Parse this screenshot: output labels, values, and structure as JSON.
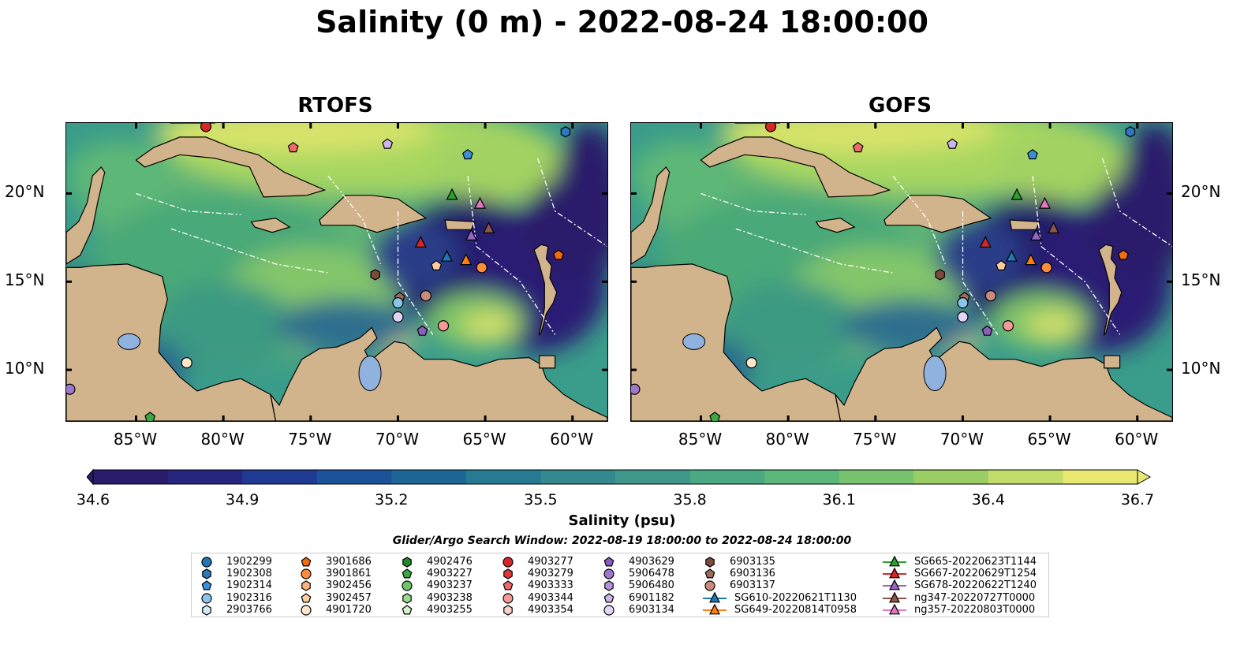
{
  "title": "Salinity (0 m) - 2022-08-24 18:00:00",
  "panels": [
    {
      "title": "RTOFS"
    },
    {
      "title": "GOFS"
    }
  ],
  "lon_ticks": [
    "85°W",
    "80°W",
    "75°W",
    "70°W",
    "65°W",
    "60°W"
  ],
  "lat_ticks": [
    "20°N",
    "15°N",
    "10°N"
  ],
  "colorbar": {
    "label": "Salinity (psu)",
    "ticks": [
      "34.6",
      "34.9",
      "35.2",
      "35.5",
      "35.8",
      "36.1",
      "36.4",
      "36.7"
    ],
    "min": 34.6,
    "max": 36.7,
    "colormap": "haline"
  },
  "search_window": "Glider/Argo Search Window: 2022-08-19 18:00:00 to 2022-08-24 18:00:00",
  "colors": {
    "land": "#d2b48c",
    "fresh": "#2a1b6b",
    "mid": "#3a9c8a",
    "salty": "#e9e873"
  },
  "legend": [
    {
      "label": "1902299",
      "marker": "circle",
      "color": "#1f77b4"
    },
    {
      "label": "1902308",
      "marker": "hexagon",
      "color": "#2f78c0"
    },
    {
      "label": "1902314",
      "marker": "pentagon",
      "color": "#3a8fd6"
    },
    {
      "label": "1902316",
      "marker": "circle",
      "color": "#8cc5ec"
    },
    {
      "label": "2903766",
      "marker": "hexagon",
      "color": "#d6ebfa"
    },
    {
      "label": "3901686",
      "marker": "pentagon",
      "color": "#f26b0e"
    },
    {
      "label": "3901861",
      "marker": "circle",
      "color": "#fd8d3c"
    },
    {
      "label": "3902456",
      "marker": "hexagon",
      "color": "#fdb57f"
    },
    {
      "label": "3902457",
      "marker": "pentagon",
      "color": "#fdcc9f"
    },
    {
      "label": "4901720",
      "marker": "circle",
      "color": "#fde8c9"
    },
    {
      "label": "4902476",
      "marker": "hexagon",
      "color": "#1e8c2a"
    },
    {
      "label": "4903227",
      "marker": "pentagon",
      "color": "#3aa845"
    },
    {
      "label": "4903237",
      "marker": "circle",
      "color": "#6cc36a"
    },
    {
      "label": "4903238",
      "marker": "hexagon",
      "color": "#98d98c"
    },
    {
      "label": "4903255",
      "marker": "pentagon",
      "color": "#d6f2cf"
    },
    {
      "label": "4903277",
      "marker": "circle",
      "color": "#d62728"
    },
    {
      "label": "4903279",
      "marker": "hexagon",
      "color": "#e0393b"
    },
    {
      "label": "4903333",
      "marker": "pentagon",
      "color": "#ec6a6b"
    },
    {
      "label": "4903344",
      "marker": "circle",
      "color": "#f59a99"
    },
    {
      "label": "4903354",
      "marker": "hexagon",
      "color": "#fbd1d0"
    },
    {
      "label": "4903629",
      "marker": "pentagon",
      "color": "#8d5cc0"
    },
    {
      "label": "5906478",
      "marker": "circle",
      "color": "#9f78cc"
    },
    {
      "label": "5906480",
      "marker": "hexagon",
      "color": "#b596dc"
    },
    {
      "label": "6901182",
      "marker": "pentagon",
      "color": "#cdb6ec"
    },
    {
      "label": "6903134",
      "marker": "circle",
      "color": "#e4d4f6"
    },
    {
      "label": "6903135",
      "marker": "hexagon",
      "color": "#7d4b3c"
    },
    {
      "label": "6903136",
      "marker": "pentagon",
      "color": "#9d6b5a"
    },
    {
      "label": "6903137",
      "marker": "circle",
      "color": "#c98c7c"
    },
    {
      "label": "SG610-20220621T1130",
      "marker": "triangle",
      "color": "#1f77b4"
    },
    {
      "label": "SG649-20220814T0958",
      "marker": "triangle",
      "color": "#ff7f0e"
    },
    {
      "label": "SG665-20220623T1144",
      "marker": "triangle",
      "color": "#2ca02c"
    },
    {
      "label": "SG667-20220629T1254",
      "marker": "triangle",
      "color": "#d62728"
    },
    {
      "label": "SG678-20220622T1240",
      "marker": "triangle",
      "color": "#9467bd"
    },
    {
      "label": "ng347-20220727T0000",
      "marker": "triangle",
      "color": "#8c564b"
    },
    {
      "label": "ng357-20220803T0000",
      "marker": "triangle",
      "color": "#e377c2"
    }
  ],
  "observations": [
    {
      "id": "4903277",
      "lon": -81.0,
      "lat": 23.8
    },
    {
      "id": "4903333",
      "lon": -76.0,
      "lat": 22.6
    },
    {
      "id": "6901182",
      "lon": -70.6,
      "lat": 22.8
    },
    {
      "id": "1902314",
      "lon": -66.0,
      "lat": 22.2
    },
    {
      "id": "1902308",
      "lon": -60.4,
      "lat": 23.5
    },
    {
      "id": "SG665-20220623T1144",
      "lon": -66.9,
      "lat": 19.9
    },
    {
      "id": "ng357-20220803T0000",
      "lon": -65.3,
      "lat": 19.4
    },
    {
      "id": "ng347-20220727T0000",
      "lon": -64.8,
      "lat": 18.0
    },
    {
      "id": "SG678-20220622T1240",
      "lon": -65.8,
      "lat": 17.6
    },
    {
      "id": "SG667-20220629T1254",
      "lon": -68.7,
      "lat": 17.2
    },
    {
      "id": "SG610-20220621T1130",
      "lon": -67.2,
      "lat": 16.4
    },
    {
      "id": "SG649-20220814T0958",
      "lon": -66.1,
      "lat": 16.2
    },
    {
      "id": "3902457",
      "lon": -67.8,
      "lat": 15.9
    },
    {
      "id": "3901861",
      "lon": -65.2,
      "lat": 15.8
    },
    {
      "id": "3901686",
      "lon": -60.8,
      "lat": 16.5
    },
    {
      "id": "6903135",
      "lon": -71.3,
      "lat": 15.4
    },
    {
      "id": "6903136",
      "lon": -69.9,
      "lat": 14.1
    },
    {
      "id": "6903137",
      "lon": -68.4,
      "lat": 14.2
    },
    {
      "id": "1902316",
      "lon": -70.0,
      "lat": 13.8
    },
    {
      "id": "6903134",
      "lon": -70.0,
      "lat": 13.0
    },
    {
      "id": "4903344",
      "lon": -67.4,
      "lat": 12.5
    },
    {
      "id": "4903629",
      "lon": -68.6,
      "lat": 12.2
    },
    {
      "id": "4901720",
      "lon": -82.1,
      "lat": 10.4
    },
    {
      "id": "5906478",
      "lon": -88.8,
      "lat": 8.9
    },
    {
      "id": "4903227",
      "lon": -84.2,
      "lat": 7.3
    }
  ]
}
